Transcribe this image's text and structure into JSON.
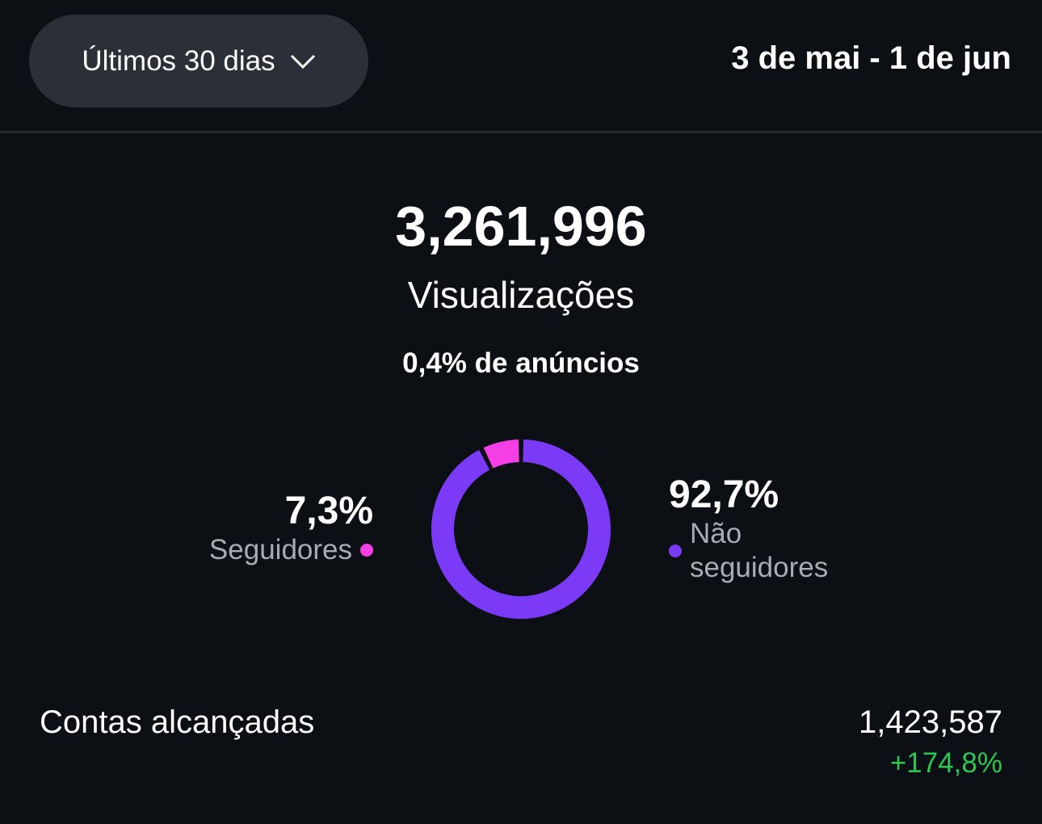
{
  "header": {
    "range_selector": "Últimos 30 dias",
    "date_range": "3 de mai - 1 de jun"
  },
  "summary": {
    "total": "3,261,996",
    "label": "Visualizações",
    "ads_note": "0,4% de anúncios"
  },
  "chart_data": {
    "type": "pie",
    "categories": [
      "Seguidores",
      "Não seguidores"
    ],
    "values": [
      7.3,
      92.7
    ],
    "colors": [
      "#f43fe6",
      "#7b3af6"
    ],
    "labels": [
      "7,3%",
      "92,7%"
    ]
  },
  "legend": {
    "followers": {
      "pct": "7,3%",
      "label": "Seguidores"
    },
    "non_followers": {
      "pct": "92,7%",
      "label_line1": "Não",
      "label_line2": "seguidores"
    }
  },
  "metric": {
    "label": "Contas alcançadas",
    "value": "1,423,587",
    "change": "+174,8%"
  }
}
